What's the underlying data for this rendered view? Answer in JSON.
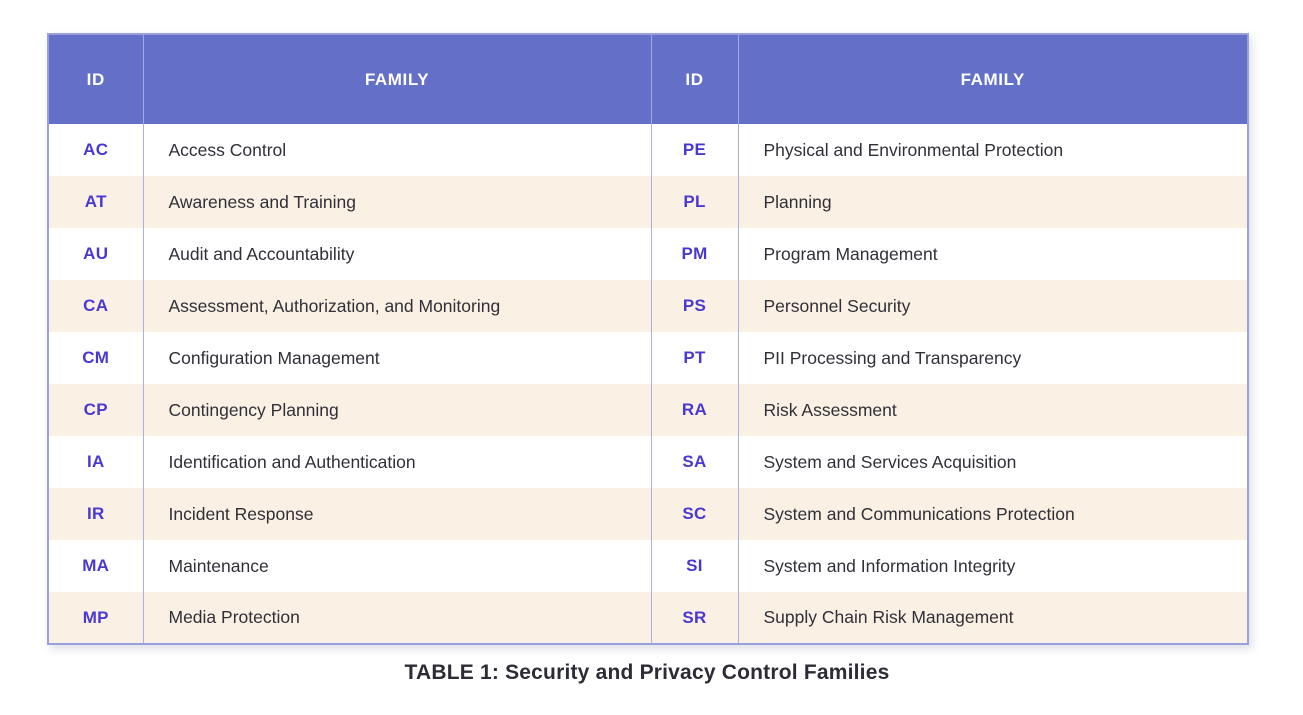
{
  "colors": {
    "header_bg": "#6470c8",
    "header_text": "#ffffff",
    "id_text": "#4a39d0",
    "row_bg": "#ffffff",
    "row_stripe_bg": "#faf1e4",
    "border": "#98a1de",
    "divider": "#a8aee6",
    "body_text": "#312f38",
    "caption_text": "#2d2b36"
  },
  "header": {
    "id_label": "ID",
    "family_label": "FAMILY"
  },
  "rows": [
    {
      "left_id": "AC",
      "left_family": "Access Control",
      "right_id": "PE",
      "right_family": "Physical and Environmental Protection"
    },
    {
      "left_id": "AT",
      "left_family": "Awareness and Training",
      "right_id": "PL",
      "right_family": "Planning"
    },
    {
      "left_id": "AU",
      "left_family": "Audit and Accountability",
      "right_id": "PM",
      "right_family": "Program Management"
    },
    {
      "left_id": "CA",
      "left_family": "Assessment, Authorization, and Monitoring",
      "right_id": "PS",
      "right_family": "Personnel Security"
    },
    {
      "left_id": "CM",
      "left_family": "Configuration Management",
      "right_id": "PT",
      "right_family": "PII Processing and Transparency"
    },
    {
      "left_id": "CP",
      "left_family": "Contingency Planning",
      "right_id": "RA",
      "right_family": "Risk Assessment"
    },
    {
      "left_id": "IA",
      "left_family": "Identification and Authentication",
      "right_id": "SA",
      "right_family": "System and Services Acquisition"
    },
    {
      "left_id": "IR",
      "left_family": "Incident Response",
      "right_id": "SC",
      "right_family": "System and Communications Protection"
    },
    {
      "left_id": "MA",
      "left_family": "Maintenance",
      "right_id": "SI",
      "right_family": "System and Information Integrity"
    },
    {
      "left_id": "MP",
      "left_family": "Media Protection",
      "right_id": "SR",
      "right_family": "Supply Chain Risk Management"
    }
  ],
  "caption": "TABLE 1: Security and Privacy Control Families"
}
